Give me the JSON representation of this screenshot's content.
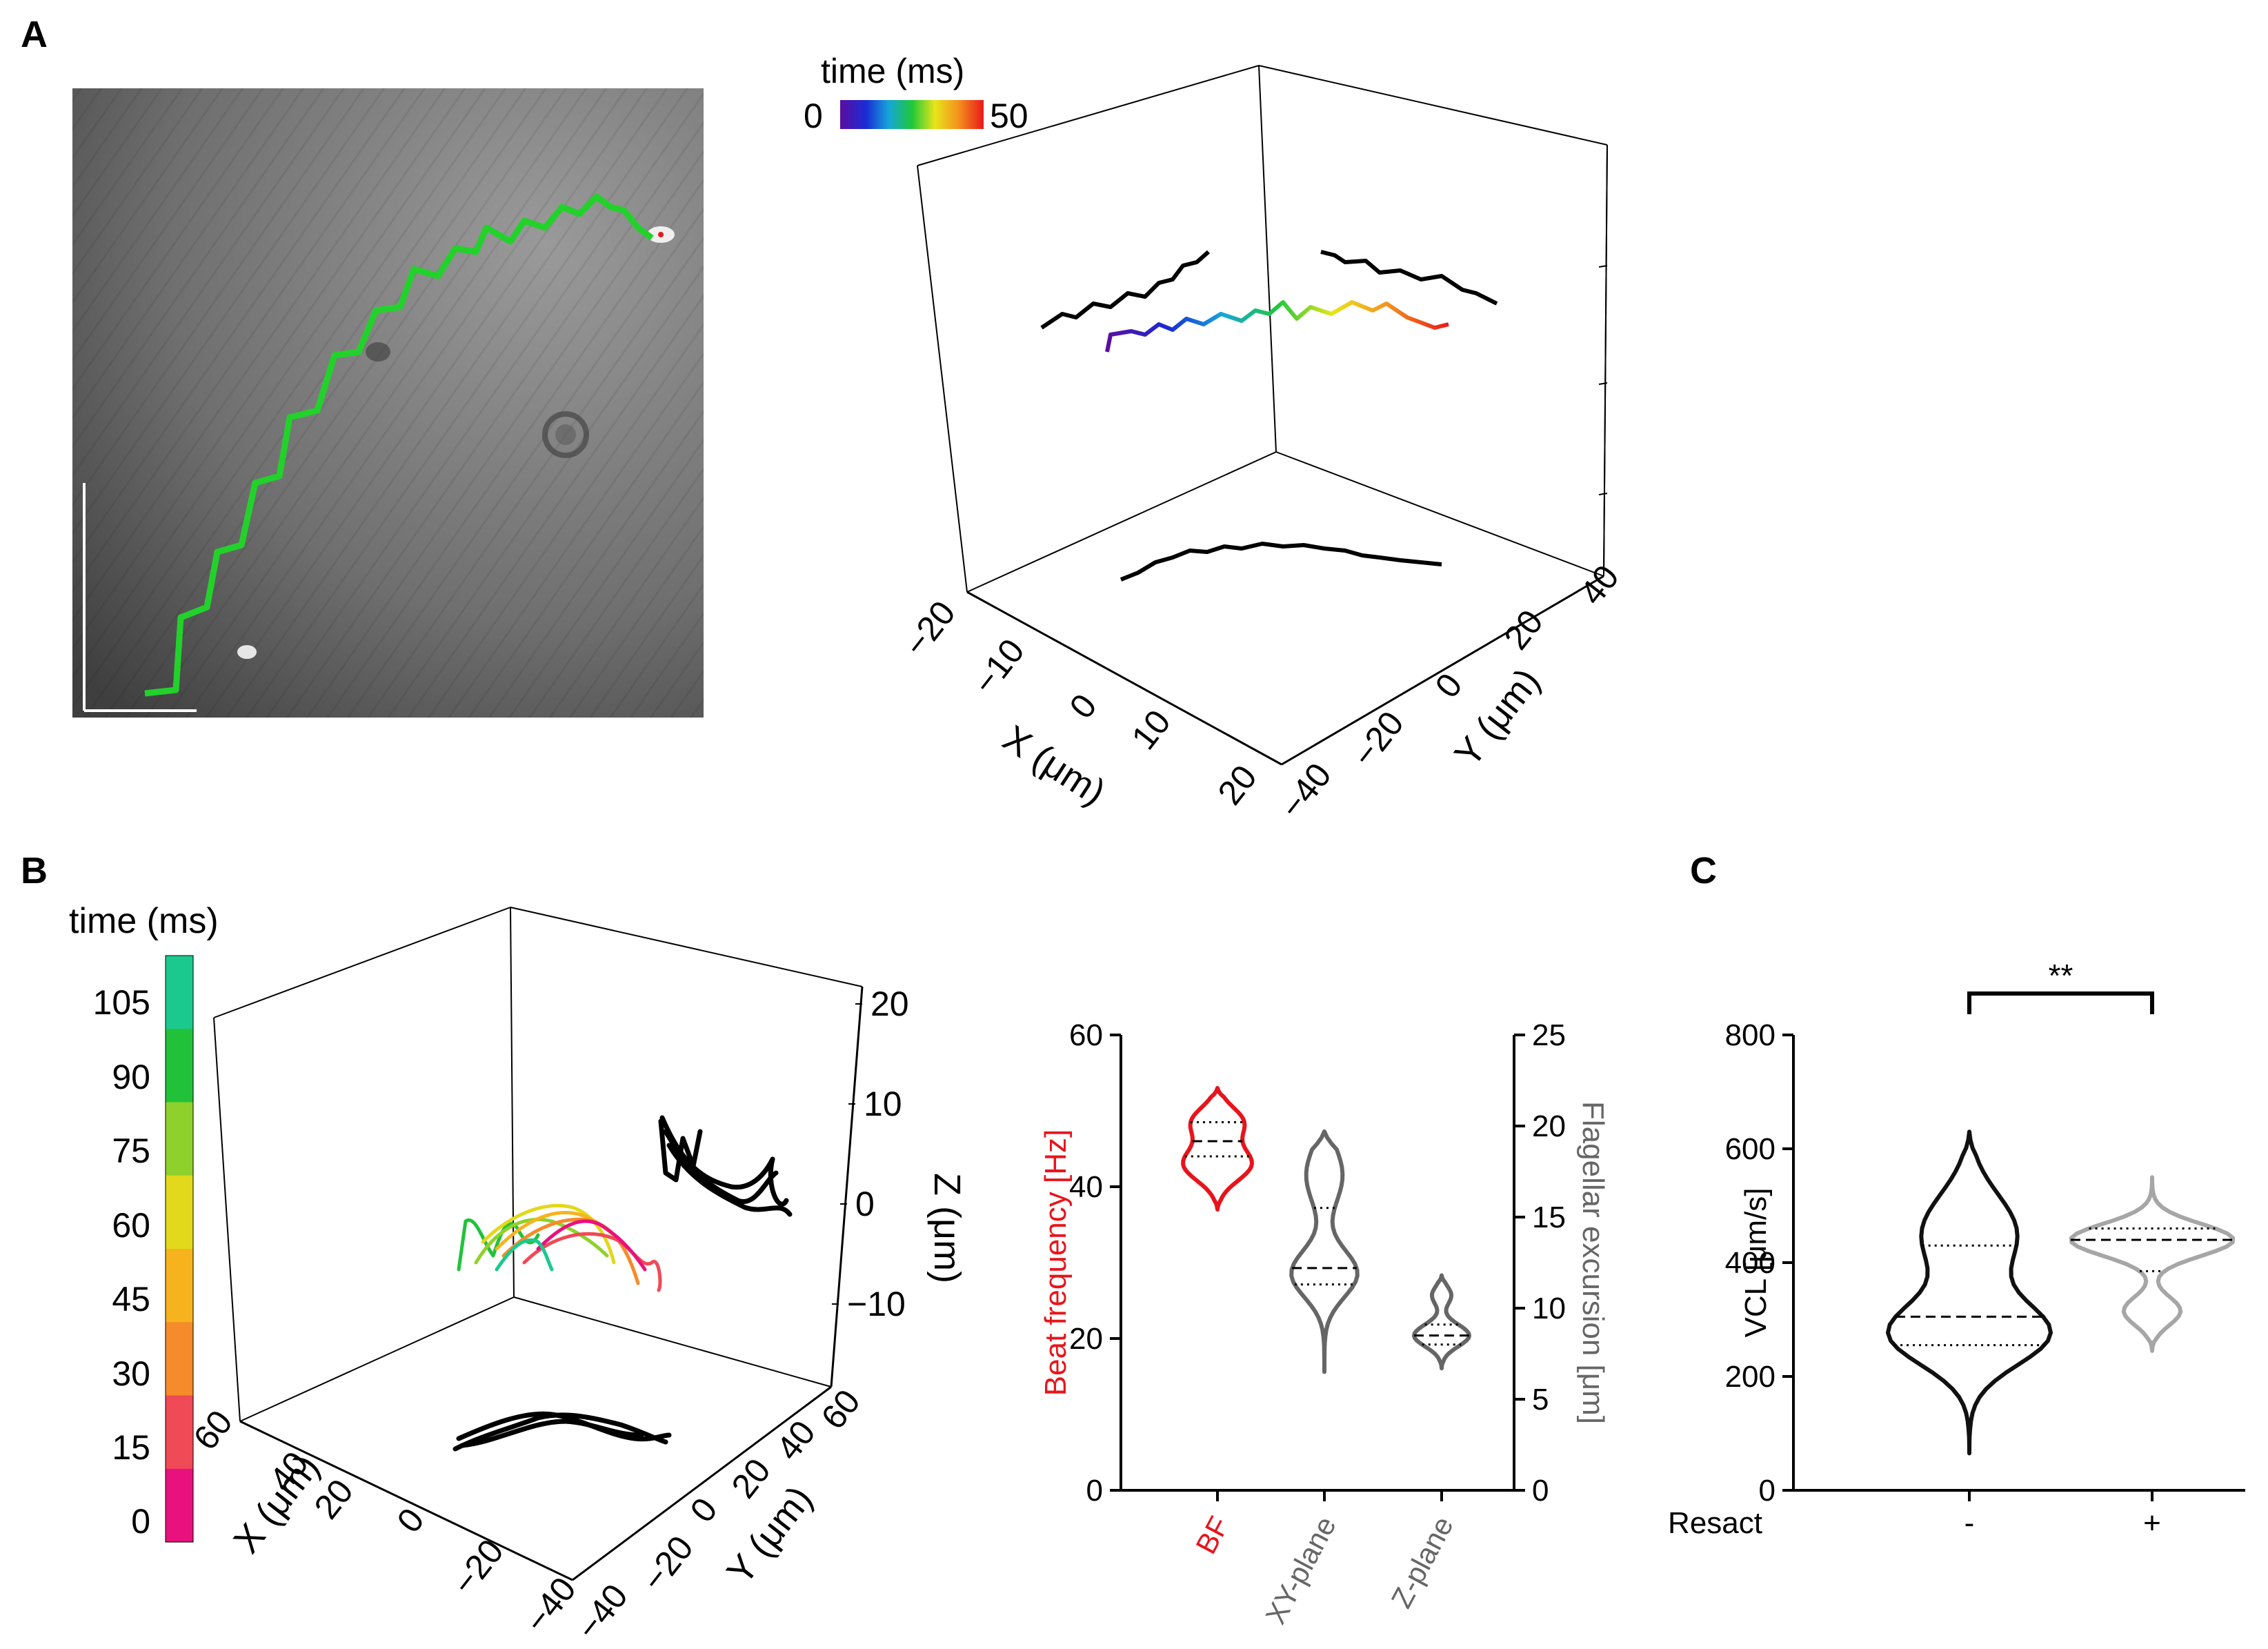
{
  "panels": {
    "A": "A",
    "B": "B",
    "C": "C"
  },
  "panel_a": {
    "micrograph_description_hidden": null,
    "colorbar": {
      "title": "time (ms)",
      "min_label": "0",
      "max_label": "50"
    },
    "axes3d": {
      "x_label": "X (μm)",
      "y_label": "Y (μm)",
      "x_ticks": [
        "−20",
        "−10",
        "0",
        "10",
        "20"
      ],
      "y_ticks": [
        "−40",
        "−20",
        "0",
        "20",
        "40"
      ]
    }
  },
  "panel_b": {
    "colorbar": {
      "title": "time (ms)",
      "ticks": [
        "105",
        "90",
        "75",
        "60",
        "45",
        "30",
        "15",
        "0"
      ],
      "colors": [
        "#1bc98e",
        "#21c23a",
        "#8fd12c",
        "#e2d81c",
        "#f7b31e",
        "#f58b2a",
        "#ef4a55",
        "#e9117e"
      ]
    },
    "axes3d": {
      "x_label": "X (μm)",
      "y_label": "Y (μm)",
      "z_label": "Z (μm)",
      "x_ticks": [
        "60",
        "40",
        "20",
        "0",
        "−20",
        "−40"
      ],
      "y_ticks": [
        "−40",
        "−20",
        "0",
        "20",
        "40",
        "60"
      ],
      "z_ticks": [
        "20",
        "10",
        "0",
        "−10"
      ]
    }
  },
  "chart_data": [
    {
      "id": "B-violin",
      "type": "violin",
      "categories": [
        "BF",
        "XY-plane",
        "Z-plane"
      ],
      "category_colors": [
        "#e8141b",
        "#666666",
        "#666666"
      ],
      "left_axis": {
        "label": "Beat frequency [Hz]",
        "color": "#e8141b",
        "ylim": [
          0,
          60
        ],
        "ticks": [
          "0",
          "20",
          "40",
          "60"
        ]
      },
      "right_axis": {
        "label": "Flagellar excursion [μm]",
        "color": "#666666",
        "ylim": [
          0,
          25
        ],
        "ticks": [
          "0",
          "5",
          "10",
          "15",
          "20",
          "25"
        ]
      },
      "series": [
        {
          "name": "BF",
          "axis": "left",
          "min": 37,
          "q1": 44,
          "median": 46,
          "q3": 48.5,
          "max": 53
        },
        {
          "name": "XY-plane",
          "axis": "right",
          "min": 6.5,
          "q1": 11.3,
          "median": 12.2,
          "q3": 15.5,
          "max": 19.7
        },
        {
          "name": "Z-plane",
          "axis": "right",
          "min": 6.7,
          "q1": 8.0,
          "median": 8.5,
          "q3": 9.1,
          "max": 11.8
        }
      ]
    },
    {
      "id": "C-violin",
      "type": "violin",
      "categories": [
        "-",
        "+"
      ],
      "group_label": "Resact",
      "category_colors": [
        "#111111",
        "#a6a6a6"
      ],
      "ylabel": "VCL [μm/s]",
      "ylim": [
        0,
        800
      ],
      "yticks": [
        "0",
        "200",
        "400",
        "600",
        "800"
      ],
      "significance": "**",
      "series": [
        {
          "name": "-",
          "min": 65,
          "q1": 255,
          "median": 305,
          "q3": 430,
          "max": 630
        },
        {
          "name": "+",
          "min": 245,
          "q1": 385,
          "median": 440,
          "q3": 460,
          "max": 550
        }
      ]
    }
  ]
}
